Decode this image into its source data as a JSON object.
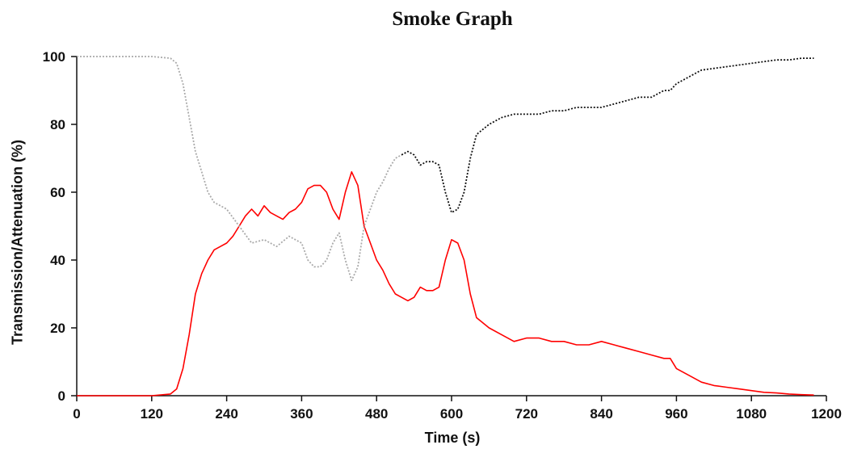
{
  "chart_data": {
    "type": "line",
    "title": "Smoke Graph",
    "xlabel": "Time (s)",
    "ylabel": "Transmission/Attenuation (%)",
    "xlim": [
      0,
      1200
    ],
    "ylim": [
      0,
      100
    ],
    "xticks": [
      0,
      120,
      240,
      360,
      480,
      600,
      720,
      840,
      960,
      1080,
      1200
    ],
    "yticks": [
      0,
      20,
      40,
      60,
      80,
      100
    ],
    "grid": false,
    "legend": "none",
    "series": [
      {
        "color": "#ff0000",
        "style": "solid",
        "x": [
          0,
          120,
          150,
          160,
          170,
          180,
          190,
          200,
          210,
          220,
          230,
          240,
          250,
          260,
          270,
          280,
          290,
          300,
          310,
          320,
          330,
          340,
          350,
          360,
          370,
          380,
          390,
          400,
          410,
          420,
          430,
          440,
          450,
          460,
          470,
          480,
          490,
          500,
          510,
          520,
          530,
          540,
          550,
          560,
          570,
          580,
          590,
          600,
          610,
          620,
          630,
          640,
          660,
          680,
          700,
          720,
          740,
          760,
          780,
          800,
          820,
          840,
          860,
          880,
          900,
          920,
          940,
          950,
          960,
          980,
          1000,
          1020,
          1040,
          1060,
          1080,
          1100,
          1120,
          1140,
          1160,
          1180
        ],
        "y": [
          0,
          0,
          0.5,
          2,
          8,
          18,
          30,
          36,
          40,
          43,
          44,
          45,
          47,
          50,
          53,
          55,
          53,
          56,
          54,
          53,
          52,
          54,
          55,
          57,
          61,
          62,
          62,
          60,
          55,
          52,
          60,
          66,
          62,
          50,
          45,
          40,
          37,
          33,
          30,
          29,
          28,
          29,
          32,
          31,
          31,
          32,
          40,
          46,
          45,
          40,
          30,
          23,
          20,
          18,
          16,
          17,
          17,
          16,
          16,
          15,
          15,
          16,
          15,
          14,
          13,
          12,
          11,
          11,
          8,
          6,
          4,
          3,
          2.5,
          2,
          1.5,
          1,
          0.8,
          0.5,
          0.3,
          0.2
        ]
      },
      {
        "color": "#aaaaaa",
        "style": "dotted",
        "x": [
          0,
          120,
          150,
          160,
          170,
          180,
          190,
          200,
          210,
          220,
          230,
          240,
          260,
          280,
          300,
          320,
          340,
          360,
          370,
          380,
          390,
          400,
          410,
          420,
          430,
          440,
          450,
          460,
          470,
          480,
          490,
          500,
          510,
          520
        ],
        "y": [
          100,
          100,
          99.5,
          98,
          92,
          82,
          72,
          66,
          60,
          57,
          56,
          55,
          50,
          45,
          46,
          44,
          47,
          45,
          40,
          38,
          38,
          40,
          45,
          48,
          40,
          34,
          38,
          50,
          55,
          60,
          63,
          67,
          70,
          71
        ]
      },
      {
        "color": "#111111",
        "style": "dotted",
        "x": [
          520,
          530,
          540,
          550,
          560,
          570,
          580,
          590,
          600,
          610,
          620,
          630,
          640,
          660,
          680,
          700,
          720,
          740,
          760,
          780,
          800,
          820,
          840,
          860,
          880,
          900,
          920,
          940,
          950,
          960,
          980,
          1000,
          1020,
          1040,
          1060,
          1080,
          1100,
          1120,
          1140,
          1160,
          1180
        ],
        "y": [
          71,
          72,
          71,
          68,
          69,
          69,
          68,
          60,
          54,
          55,
          60,
          70,
          77,
          80,
          82,
          83,
          83,
          83,
          84,
          84,
          85,
          85,
          85,
          86,
          87,
          88,
          88,
          90,
          90,
          92,
          94,
          96,
          96.5,
          97,
          97.5,
          98,
          98.5,
          99,
          99,
          99.5,
          99.5
        ]
      }
    ]
  }
}
